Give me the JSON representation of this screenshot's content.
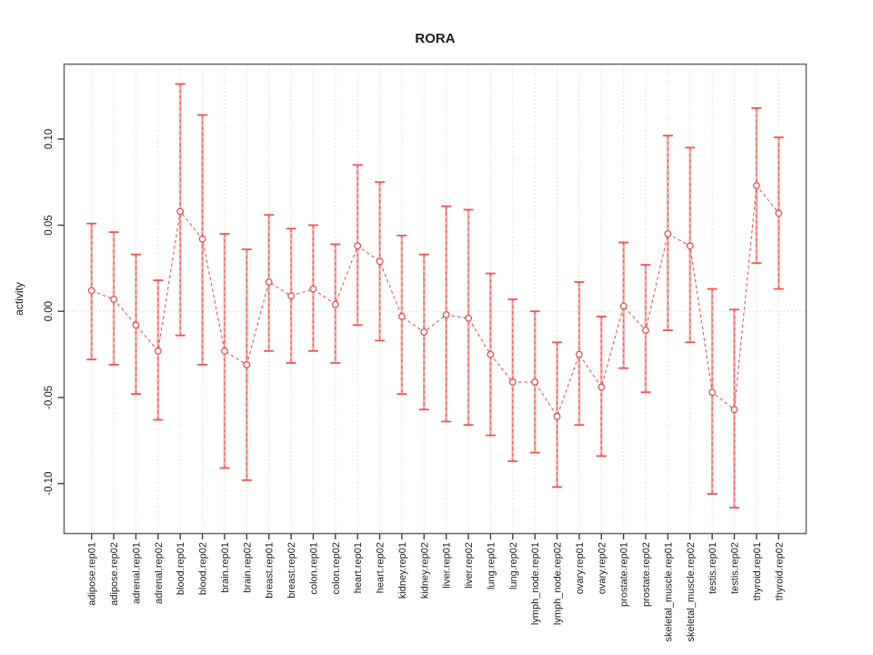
{
  "page": {
    "background": "#ffffff"
  },
  "chart_data": {
    "type": "line",
    "subtype": "errorbar-line-plot",
    "title": "RORA",
    "xlabel": "",
    "ylabel": "activity",
    "legend_position": "none",
    "grid": "vertical dotted gridline per category; dotted horizontal line at zero",
    "ylim": [
      -0.129,
      0.1435
    ],
    "ytick_values": [
      -0.1,
      -0.05,
      0.0,
      0.05,
      0.1
    ],
    "ytick_labels": [
      "-0.10",
      "-0.05",
      "0.00",
      "0.05",
      "0.10"
    ],
    "categories": [
      "adipose.rep01",
      "adipose.rep02",
      "adrenal.rep01",
      "adrenal.rep02",
      "blood.rep01",
      "blood.rep02",
      "brain.rep01",
      "brain.rep02",
      "breast.rep01",
      "breast.rep02",
      "colon.rep01",
      "colon.rep02",
      "heart.rep01",
      "heart.rep02",
      "kidney.rep01",
      "kidney.rep02",
      "liver.rep01",
      "liver.rep02",
      "lung.rep01",
      "lung.rep02",
      "lymph_node.rep01",
      "lymph_node.rep02",
      "ovary.rep01",
      "ovary.rep02",
      "prostate.rep01",
      "prostate.rep02",
      "skeletal_muscle.rep01",
      "skeletal_muscle.rep02",
      "testis.rep01",
      "testis.rep02",
      "thyroid.rep01",
      "thyroid.rep02"
    ],
    "series": [
      {
        "name": "activity",
        "marker": "open-circle",
        "values": [
          0.012,
          0.007,
          -0.008,
          -0.023,
          0.058,
          0.042,
          -0.023,
          -0.031,
          0.017,
          0.009,
          0.013,
          0.004,
          0.038,
          0.029,
          -0.003,
          -0.012,
          -0.002,
          -0.004,
          -0.025,
          -0.041,
          -0.041,
          -0.061,
          -0.025,
          -0.044,
          0.003,
          -0.011,
          0.045,
          0.038,
          -0.047,
          -0.057,
          0.073,
          0.057
        ],
        "upper": [
          0.051,
          0.046,
          0.033,
          0.018,
          0.132,
          0.114,
          0.045,
          0.036,
          0.056,
          0.048,
          0.05,
          0.039,
          0.085,
          0.075,
          0.044,
          0.033,
          0.061,
          0.059,
          0.022,
          0.007,
          0.0,
          -0.018,
          0.017,
          -0.003,
          0.04,
          0.027,
          0.102,
          0.095,
          0.013,
          0.001,
          0.118,
          0.101
        ],
        "lower": [
          -0.028,
          -0.031,
          -0.048,
          -0.063,
          -0.014,
          -0.031,
          -0.091,
          -0.098,
          -0.023,
          -0.03,
          -0.023,
          -0.03,
          -0.008,
          -0.017,
          -0.048,
          -0.057,
          -0.064,
          -0.066,
          -0.072,
          -0.087,
          -0.082,
          -0.102,
          -0.066,
          -0.084,
          -0.033,
          -0.047,
          -0.011,
          -0.018,
          -0.106,
          -0.114,
          0.028,
          0.013
        ]
      }
    ],
    "colors": {
      "series_red": "#f15252",
      "marker_stroke": "#ea4343",
      "marker_fill": "#ffffff",
      "errorbar_pink": "#f8aeae",
      "errorbar_cap": "#f15252",
      "gridline": "#dadada",
      "zero_line": "#dcd8d8",
      "plot_border": "#6f6f6f",
      "tick": "#3d3d3d",
      "text": "#1c1c1c"
    }
  }
}
